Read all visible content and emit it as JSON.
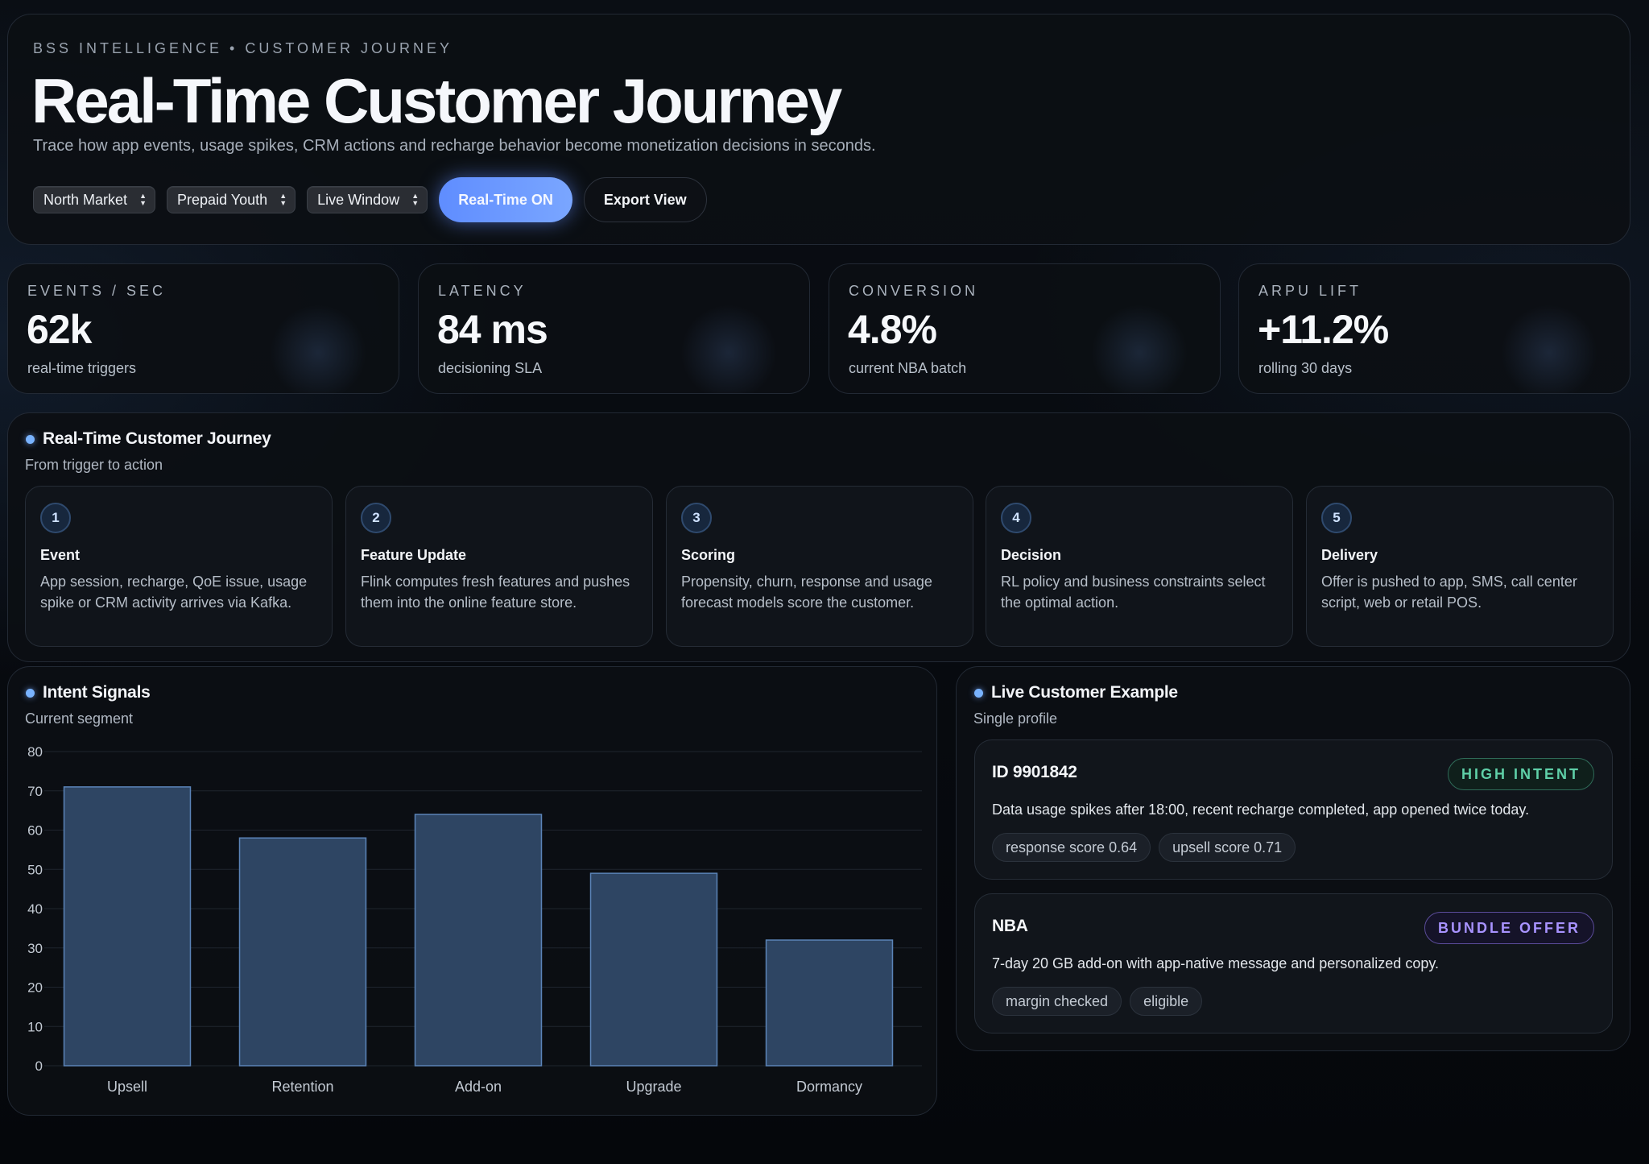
{
  "header": {
    "eyebrow": "BSS INTELLIGENCE • CUSTOMER JOURNEY",
    "title": "Real-Time Customer Journey",
    "subtitle": "Trace how app events, usage spikes, CRM actions and recharge behavior become monetization decisions in seconds.",
    "filters": {
      "market": "North Market",
      "segment": "Prepaid Youth",
      "window": "Live Window"
    },
    "realtime_button": "Real-Time ON",
    "export_button": "Export View"
  },
  "kpis": [
    {
      "label": "EVENTS / SEC",
      "value": "62k",
      "sub": "real-time triggers"
    },
    {
      "label": "LATENCY",
      "value": "84 ms",
      "sub": "decisioning SLA"
    },
    {
      "label": "CONVERSION",
      "value": "4.8%",
      "sub": "current NBA batch"
    },
    {
      "label": "ARPU LIFT",
      "value": "+11.2%",
      "sub": "rolling 30 days"
    }
  ],
  "journey": {
    "title": "Real-Time Customer Journey",
    "subtitle": "From trigger to action",
    "steps": [
      {
        "num": "1",
        "title": "Event",
        "desc": "App session, recharge, QoE issue, usage spike or CRM activity arrives via Kafka."
      },
      {
        "num": "2",
        "title": "Feature Update",
        "desc": "Flink computes fresh features and pushes them into the online feature store."
      },
      {
        "num": "3",
        "title": "Scoring",
        "desc": "Propensity, churn, response and usage forecast models score the customer."
      },
      {
        "num": "4",
        "title": "Decision",
        "desc": "RL policy and business constraints select the optimal action."
      },
      {
        "num": "5",
        "title": "Delivery",
        "desc": "Offer is pushed to app, SMS, call center script, web or retail POS."
      }
    ]
  },
  "intent": {
    "title": "Intent Signals",
    "subtitle": "Current segment"
  },
  "chart_data": {
    "type": "bar",
    "categories": [
      "Upsell",
      "Retention",
      "Add-on",
      "Upgrade",
      "Dormancy"
    ],
    "values": [
      71,
      58,
      64,
      49,
      32
    ],
    "ylim": [
      0,
      80
    ],
    "yticks": [
      0,
      10,
      20,
      30,
      40,
      50,
      60,
      70,
      80
    ],
    "grid": true,
    "bar_color": "#2e4563",
    "bar_border": "#5b84b8"
  },
  "live": {
    "title": "Live Customer Example",
    "subtitle": "Single profile",
    "customer": {
      "id": "ID 9901842",
      "badge": "HIGH INTENT",
      "desc": "Data usage spikes after 18:00, recent recharge completed, app opened twice today.",
      "chips": [
        "response score 0.64",
        "upsell score 0.71"
      ]
    },
    "nba": {
      "title": "NBA",
      "badge": "BUNDLE OFFER",
      "desc": "7-day 20 GB add-on with app-native message and personalized copy.",
      "chips": [
        "margin checked",
        "eligible"
      ]
    }
  },
  "colors": {
    "accent": "#6f9bff",
    "high_intent": "#5fd0a8",
    "bundle_offer": "#a893ff"
  }
}
